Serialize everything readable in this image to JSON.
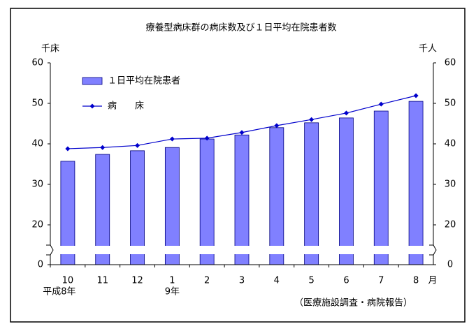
{
  "chart_data": {
    "type": "bar-line",
    "title": "療養型病床群の病床数及び１日平均在院患者数",
    "y_label": "千床",
    "y2_label": "千人",
    "categories": [
      "10",
      "11",
      "12",
      "1",
      "2",
      "3",
      "4",
      "5",
      "6",
      "7",
      "8"
    ],
    "year_labels": [
      "平成8年",
      null,
      null,
      "9年",
      null,
      null,
      null,
      null,
      null,
      null,
      null
    ],
    "x_unit": "月",
    "series": [
      {
        "name": "１日平均在院患者",
        "type": "bar",
        "axis": "y2",
        "color": "#8080ff",
        "values": [
          35.7,
          37.4,
          38.3,
          39.1,
          41.2,
          42.2,
          44.0,
          45.2,
          46.4,
          48.1,
          50.5
        ]
      },
      {
        "name": "病　　床",
        "type": "line",
        "color": "#0000cc",
        "values": [
          38.8,
          39.1,
          39.6,
          41.2,
          41.4,
          42.8,
          44.5,
          46.0,
          47.6,
          49.8,
          51.9
        ]
      }
    ],
    "ylim": [
      0,
      60
    ],
    "yticks": [
      0,
      20,
      30,
      40,
      50,
      60
    ],
    "y2lim": [
      0,
      60
    ],
    "y2ticks": [
      0,
      20,
      30,
      40,
      50,
      60
    ],
    "axis_break": [
      0,
      15
    ],
    "source": "（医療施設調査・病院報告）"
  }
}
